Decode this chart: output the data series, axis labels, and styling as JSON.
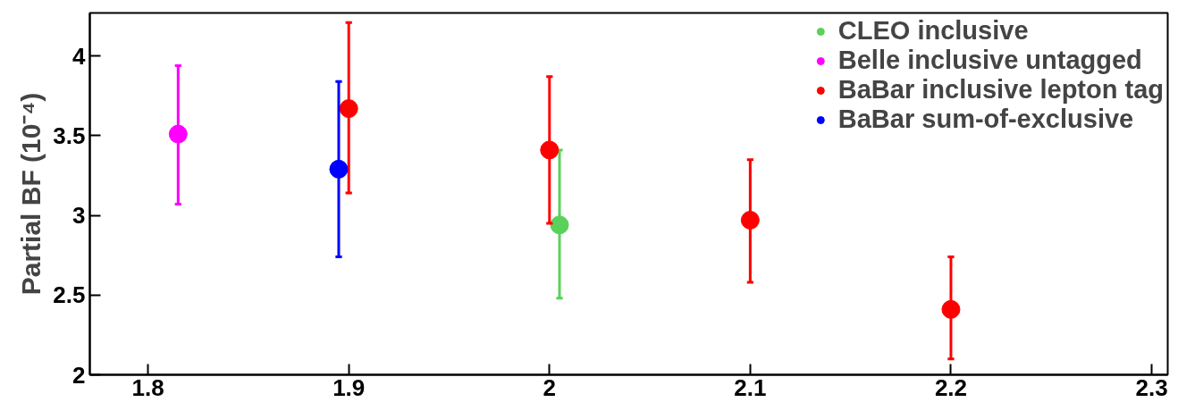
{
  "chart_data": {
    "type": "scatter",
    "ylabel": "Partial BF (10⁻⁴)",
    "xlim": [
      1.771,
      2.308
    ],
    "ylim": [
      2,
      4.27
    ],
    "xticks": [
      1.8,
      1.9,
      2,
      2.1,
      2.2,
      2.3
    ],
    "yticks": [
      2,
      2.5,
      3,
      3.5,
      4
    ],
    "grid": false,
    "legend": "top right",
    "marker": "circle",
    "series": [
      {
        "name": "CLEO inclusive",
        "color": "#5ad15a",
        "x": [
          2.005
        ],
        "values": [
          2.94
        ],
        "errors": [
          [
            2.48,
            3.41
          ]
        ]
      },
      {
        "name": "Belle inclusive untagged",
        "color": "#ff00ff",
        "x": [
          1.815
        ],
        "values": [
          3.51
        ],
        "errors": [
          [
            3.07,
            3.94
          ]
        ]
      },
      {
        "name": "BaBar inclusive lepton tag",
        "color": "#ff0000",
        "x": [
          1.9,
          2.0,
          2.1,
          2.2
        ],
        "values": [
          3.67,
          3.41,
          2.97,
          2.41
        ],
        "errors": [
          [
            3.14,
            4.21
          ],
          [
            2.95,
            3.87
          ],
          [
            2.58,
            3.35
          ],
          [
            2.1,
            2.74
          ]
        ]
      },
      {
        "name": "BaBar sum-of-exclusive",
        "color": "#0000ff",
        "x": [
          1.895
        ],
        "values": [
          3.29
        ],
        "errors": [
          [
            2.74,
            3.84
          ]
        ]
      }
    ]
  }
}
